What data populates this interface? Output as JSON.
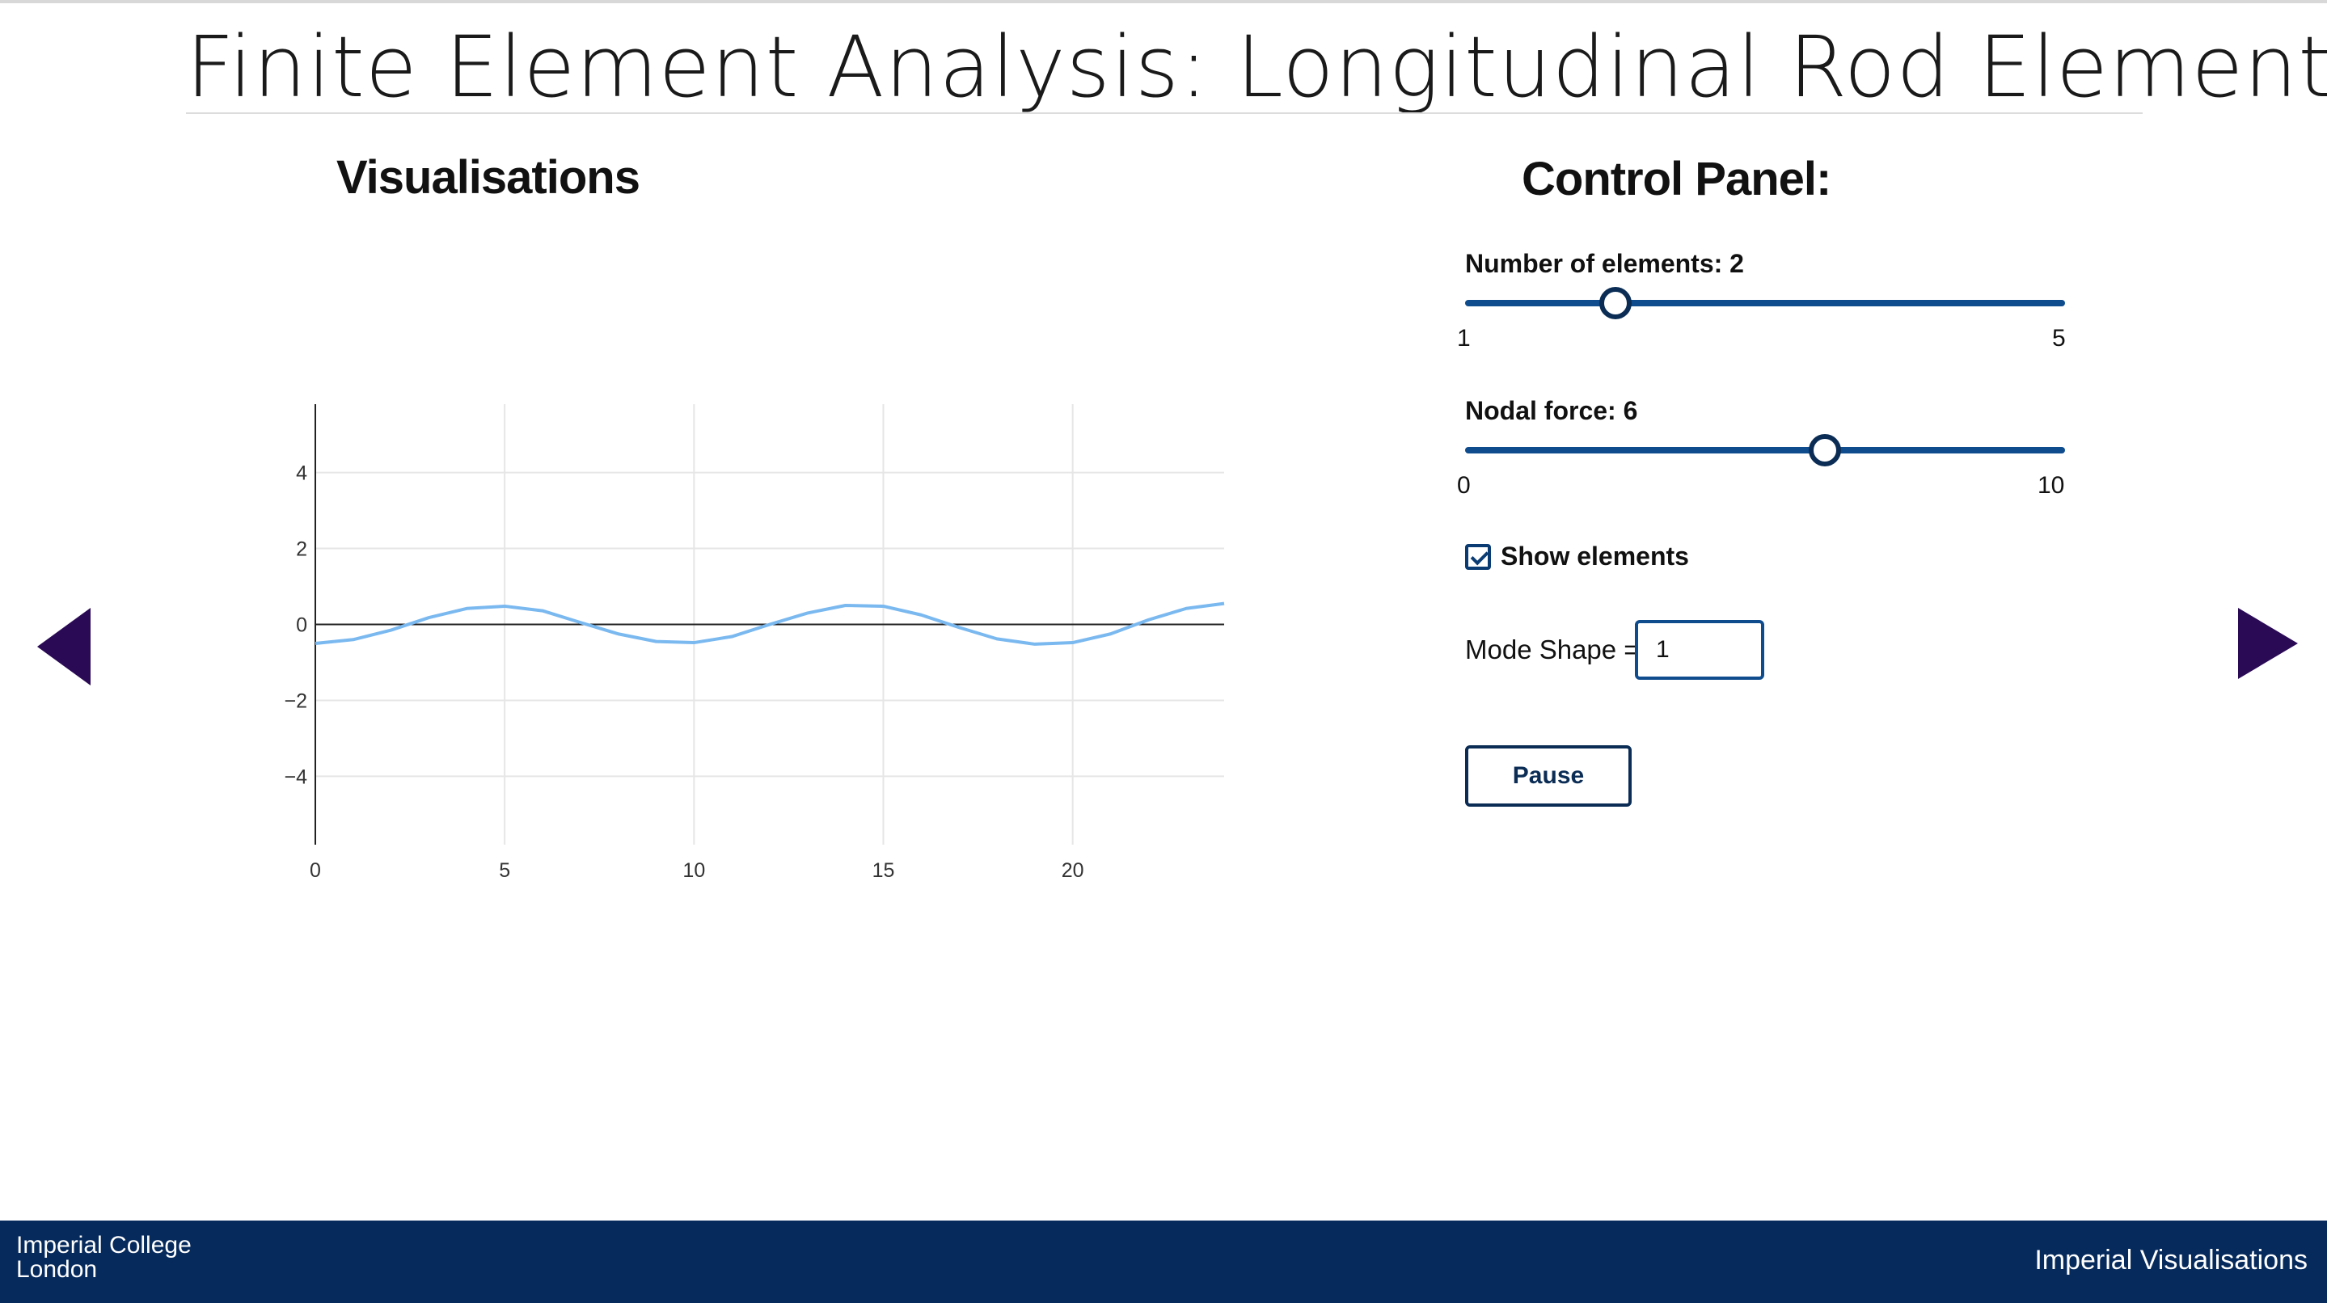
{
  "page": {
    "title": "Finite Element Analysis: Longitudinal Rod Element",
    "visualisations_heading": "Visualisations",
    "control_panel_heading": "Control Panel:"
  },
  "controls": {
    "elements_slider": {
      "label": "Number of elements: 2",
      "min_label": "1",
      "max_label": "5",
      "min": 1,
      "max": 5,
      "value": 2
    },
    "force_slider": {
      "label": "Nodal force: 6",
      "min_label": "0",
      "max_label": "10",
      "min": 0,
      "max": 10,
      "value": 6
    },
    "show_elements": {
      "label": "Show elements",
      "checked": true
    },
    "mode_shape": {
      "label": "Mode Shape =",
      "value": "1"
    },
    "pause_label": "Pause"
  },
  "nav": {
    "prev_icon": "triangle-left-icon",
    "next_icon": "triangle-right-icon"
  },
  "footer": {
    "logo_line1": "Imperial College",
    "logo_line2": "London",
    "right_text": "Imperial Visualisations"
  },
  "colors": {
    "accent": "#0e4c8e",
    "dark_blue": "#062a5c",
    "arrow": "#2a0a55",
    "series": "#7ab8f0"
  },
  "chart_data": {
    "type": "line",
    "title": "",
    "xlabel": "",
    "ylabel": "",
    "xlim": [
      0,
      24
    ],
    "ylim": [
      -5.8,
      5.8
    ],
    "grid": true,
    "x_ticks": [
      "0",
      "5",
      "10",
      "15",
      "20"
    ],
    "x_tick_values": [
      0,
      5,
      10,
      15,
      20
    ],
    "y_ticks": [
      "4",
      "2",
      "0",
      "−2",
      "−4"
    ],
    "y_tick_values": [
      4,
      2,
      0,
      -2,
      -4
    ],
    "series": [
      {
        "x": [
          0,
          1,
          2,
          3,
          4,
          5,
          6,
          7,
          8,
          9,
          10,
          11,
          12,
          13,
          14,
          15,
          16,
          17,
          18,
          19,
          20,
          21,
          22,
          23,
          24
        ],
        "values": [
          -0.5,
          -0.4,
          -0.15,
          0.18,
          0.42,
          0.48,
          0.36,
          0.05,
          -0.25,
          -0.45,
          -0.48,
          -0.32,
          0.0,
          0.3,
          0.5,
          0.48,
          0.25,
          -0.08,
          -0.38,
          -0.52,
          -0.48,
          -0.25,
          0.12,
          0.42,
          0.55
        ]
      }
    ]
  }
}
